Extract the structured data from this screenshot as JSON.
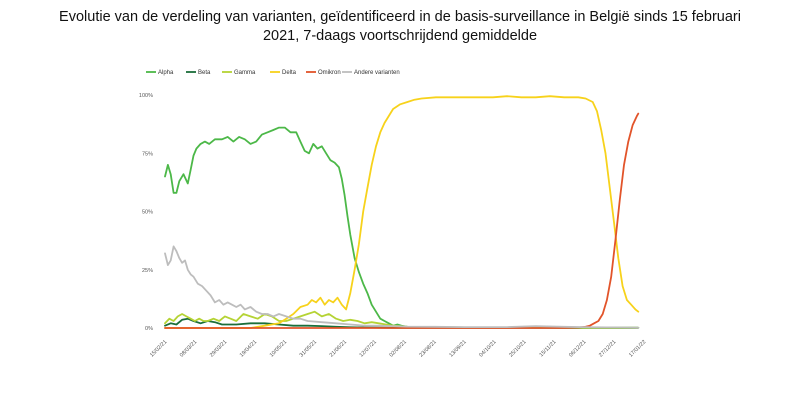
{
  "title_line1": "Evolutie van de verdeling van varianten, geïdentificeerd in de basis-surveillance in België sinds 15 februari",
  "title_line2": "2021, 7-daags voortschrijdend gemiddelde",
  "chart_data": {
    "type": "line",
    "title": "Evolutie van de verdeling van varianten, geïdentificeerd in de basis-surveillance in België sinds 15 februari 2021, 7-daags voortschrijdend gemiddelde",
    "xlabel": "",
    "ylabel": "",
    "ylim": [
      0,
      100
    ],
    "y_ticks": [
      "0%",
      "25%",
      "50%",
      "75%",
      "100%"
    ],
    "y_tick_values": [
      0,
      25,
      50,
      75,
      100
    ],
    "x_ticks": [
      "15/02/21",
      "08/03/21",
      "29/03/21",
      "19/04/21",
      "10/05/21",
      "31/05/21",
      "21/06/21",
      "12/07/21",
      "02/08/21",
      "23/08/21",
      "13/09/21",
      "04/10/21",
      "25/10/21",
      "15/11/21",
      "06/12/21",
      "27/12/21",
      "17/01/22"
    ],
    "x_tick_days": [
      0,
      21,
      42,
      63,
      84,
      105,
      126,
      147,
      168,
      189,
      210,
      231,
      252,
      273,
      294,
      315,
      336
    ],
    "legend_position": "top-left",
    "grid": false,
    "series": [
      {
        "name": "Alpha",
        "color": "#4cb848",
        "x": [
          0,
          2,
          4,
          6,
          8,
          10,
          13,
          16,
          18,
          20,
          22,
          25,
          28,
          31,
          35,
          40,
          44,
          48,
          52,
          56,
          60,
          64,
          68,
          72,
          76,
          80,
          84,
          88,
          92,
          95,
          98,
          101,
          104,
          107,
          110,
          113,
          116,
          119,
          122,
          124,
          126,
          128,
          130,
          133,
          136,
          139,
          142,
          145,
          148,
          151,
          154,
          157,
          160,
          163,
          166,
          170,
          175,
          180,
          190,
          200,
          220,
          240,
          260,
          280,
          300,
          320,
          332
        ],
        "y": [
          65,
          70,
          66,
          58,
          58,
          63,
          66,
          62,
          68,
          74,
          77,
          79,
          80,
          79,
          81,
          81,
          82,
          80,
          82,
          81,
          79,
          80,
          83,
          84,
          85,
          86,
          86,
          84,
          84,
          80,
          76,
          75,
          79,
          77,
          78,
          75,
          72,
          71,
          69,
          64,
          57,
          48,
          40,
          30,
          24,
          19,
          15,
          10,
          7,
          4,
          3,
          2,
          1,
          1.5,
          1,
          0.5,
          0.3,
          0.3,
          0.2,
          0.3,
          0.2,
          0.2,
          0.2,
          0.1,
          0.1,
          0.1,
          0.1
        ]
      },
      {
        "name": "Beta",
        "color": "#1b6e3a",
        "x": [
          0,
          4,
          8,
          12,
          16,
          20,
          25,
          30,
          35,
          40,
          50,
          60,
          70,
          80,
          90,
          100,
          110,
          120,
          130,
          140,
          160,
          200,
          250,
          300,
          332
        ],
        "y": [
          1,
          2,
          1.5,
          3.5,
          4,
          3,
          2,
          3,
          2.5,
          1.5,
          1.5,
          2,
          2,
          1.5,
          1,
          1,
          0.8,
          0.5,
          0.3,
          0.2,
          0.1,
          0.1,
          0.1,
          0.1,
          0.1
        ]
      },
      {
        "name": "Gamma",
        "color": "#b5d334",
        "x": [
          0,
          3,
          6,
          9,
          12,
          15,
          18,
          21,
          24,
          27,
          30,
          34,
          38,
          42,
          46,
          50,
          55,
          60,
          65,
          70,
          75,
          80,
          85,
          90,
          95,
          100,
          105,
          110,
          115,
          120,
          125,
          130,
          135,
          140,
          145,
          150,
          155,
          160,
          170,
          200,
          250,
          300,
          332
        ],
        "y": [
          2,
          4,
          3,
          5,
          6,
          5,
          4,
          3,
          4,
          3,
          3,
          4,
          3,
          5,
          4,
          3,
          6,
          5,
          4,
          6,
          5,
          3,
          3,
          4,
          5,
          6,
          7,
          5,
          6,
          4,
          3,
          3.5,
          3,
          2,
          2.5,
          2,
          1.5,
          1,
          0.5,
          0.2,
          0.2,
          0.1,
          0.1
        ]
      },
      {
        "name": "Delta",
        "color": "#f7d21b",
        "x": [
          0,
          20,
          40,
          60,
          70,
          80,
          85,
          90,
          95,
          100,
          103,
          106,
          109,
          112,
          115,
          118,
          121,
          124,
          127,
          130,
          133,
          136,
          139,
          142,
          145,
          148,
          151,
          154,
          157,
          160,
          165,
          170,
          175,
          180,
          190,
          200,
          210,
          220,
          230,
          240,
          250,
          260,
          270,
          280,
          290,
          295,
          300,
          303,
          306,
          309,
          312,
          315,
          318,
          321,
          324,
          327,
          330,
          332
        ],
        "y": [
          0,
          0,
          0,
          0,
          1,
          2,
          4,
          6,
          9,
          10,
          12,
          11,
          13,
          10,
          12,
          11,
          13,
          10,
          8,
          15,
          25,
          36,
          50,
          60,
          70,
          78,
          84,
          88,
          91,
          94,
          96,
          97,
          98,
          98.5,
          99,
          99,
          99,
          99,
          99,
          99.5,
          99,
          99,
          99.5,
          99,
          99,
          98.5,
          97,
          93,
          85,
          75,
          60,
          45,
          30,
          18,
          12,
          10,
          8,
          7
        ]
      },
      {
        "name": "Omikron",
        "color": "#e2542a",
        "x": [
          0,
          100,
          200,
          280,
          290,
          295,
          298,
          301,
          304,
          307,
          310,
          313,
          316,
          319,
          322,
          325,
          328,
          331,
          332
        ],
        "y": [
          0,
          0,
          0,
          0,
          0.2,
          0.5,
          1,
          2,
          3,
          6,
          12,
          22,
          38,
          55,
          70,
          80,
          87,
          91,
          92
        ]
      },
      {
        "name": "Andere varianten",
        "color": "#bdbdbd",
        "x": [
          0,
          2,
          4,
          6,
          8,
          10,
          12,
          14,
          16,
          18,
          20,
          23,
          26,
          29,
          32,
          35,
          38,
          41,
          44,
          47,
          50,
          53,
          56,
          60,
          64,
          68,
          72,
          76,
          80,
          85,
          90,
          95,
          100,
          110,
          120,
          130,
          140,
          150,
          160,
          170,
          190,
          210,
          240,
          260,
          280,
          300,
          320,
          332
        ],
        "y": [
          32,
          27,
          29,
          35,
          33,
          30,
          28,
          29,
          25,
          23,
          22,
          19,
          18,
          16,
          14,
          11,
          12,
          10,
          11,
          10,
          9,
          10,
          8,
          9,
          7,
          6,
          6,
          5,
          6,
          5,
          4,
          4,
          3,
          2.5,
          2,
          1.5,
          1,
          1,
          0.8,
          0.6,
          0.5,
          0.4,
          0.4,
          0.8,
          0.5,
          0.3,
          0.2,
          0.1
        ]
      }
    ]
  }
}
